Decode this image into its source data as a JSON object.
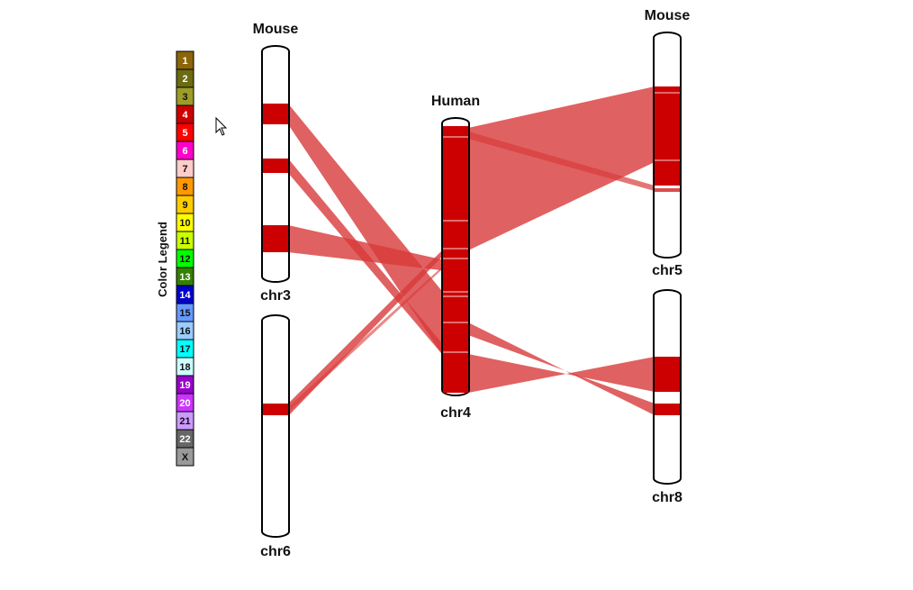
{
  "legend": {
    "title": "Color Legend",
    "items": [
      {
        "label": "1",
        "color": "#8B6508",
        "text": "#ffffff"
      },
      {
        "label": "2",
        "color": "#6B6B10",
        "text": "#ffffff"
      },
      {
        "label": "3",
        "color": "#9C9C27",
        "text": "#111111"
      },
      {
        "label": "4",
        "color": "#CC0000",
        "text": "#ffffff"
      },
      {
        "label": "5",
        "color": "#FF0000",
        "text": "#ffffff"
      },
      {
        "label": "6",
        "color": "#FF00CC",
        "text": "#ffffff"
      },
      {
        "label": "7",
        "color": "#FFCCCC",
        "text": "#111111"
      },
      {
        "label": "8",
        "color": "#FF9900",
        "text": "#111111"
      },
      {
        "label": "9",
        "color": "#FFCC00",
        "text": "#111111"
      },
      {
        "label": "10",
        "color": "#FFFF00",
        "text": "#111111"
      },
      {
        "label": "11",
        "color": "#CCFF00",
        "text": "#111111"
      },
      {
        "label": "12",
        "color": "#00FF00",
        "text": "#111111"
      },
      {
        "label": "13",
        "color": "#358000",
        "text": "#ffffff"
      },
      {
        "label": "14",
        "color": "#0000CC",
        "text": "#ffffff"
      },
      {
        "label": "15",
        "color": "#6699FF",
        "text": "#111111"
      },
      {
        "label": "16",
        "color": "#99CCFF",
        "text": "#111111"
      },
      {
        "label": "17",
        "color": "#00FFFF",
        "text": "#111111"
      },
      {
        "label": "18",
        "color": "#CCFFFF",
        "text": "#111111"
      },
      {
        "label": "19",
        "color": "#9900CC",
        "text": "#ffffff"
      },
      {
        "label": "20",
        "color": "#CC33FF",
        "text": "#ffffff"
      },
      {
        "label": "21",
        "color": "#CC99FF",
        "text": "#111111"
      },
      {
        "label": "22",
        "color": "#666666",
        "text": "#ffffff"
      },
      {
        "label": "X",
        "color": "#999999",
        "text": "#111111"
      }
    ]
  },
  "colors": {
    "block": "#CC0000",
    "ribbon": "#D83A3A",
    "outline": "#000000"
  },
  "chromosomes": {
    "chr3": {
      "species": "Mouse",
      "name": "chr3"
    },
    "chr6": {
      "name": "chr6"
    },
    "chr4": {
      "species": "Human",
      "name": "chr4"
    },
    "chr5": {
      "species": "Mouse",
      "name": "chr5"
    },
    "chr8": {
      "name": "chr8"
    }
  },
  "cursor_icon": "pointer-cursor-icon"
}
